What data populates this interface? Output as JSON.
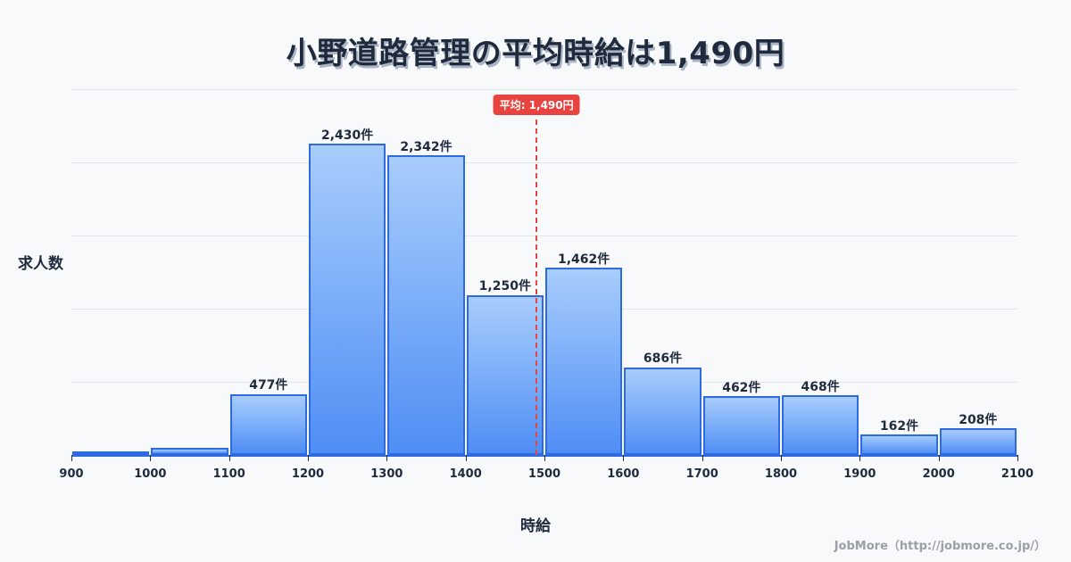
{
  "title": "小野道路管理の平均時給は1,490円",
  "y_axis_label": "求人数",
  "x_axis_label": "時給",
  "credit": "JobMore（http://jobmore.co.jp/）",
  "mean_badge": "平均: 1,490円",
  "colors": {
    "bar_fill_top": "#a8cdfc",
    "bar_fill_bottom": "#4f8ef5",
    "bar_border": "#2f6be0",
    "mean_line": "#e04848",
    "mean_badge": "#e8433f",
    "text": "#1f2a3c",
    "background": "#f8f9fb"
  },
  "chart_data": {
    "type": "bar",
    "title": "小野道路管理の平均時給は1,490円",
    "xlabel": "時給",
    "ylabel": "求人数",
    "bins": [
      [
        900,
        1000
      ],
      [
        1000,
        1100
      ],
      [
        1100,
        1200
      ],
      [
        1200,
        1300
      ],
      [
        1300,
        1400
      ],
      [
        1400,
        1500
      ],
      [
        1500,
        1600
      ],
      [
        1600,
        1700
      ],
      [
        1700,
        1800
      ],
      [
        1800,
        1900
      ],
      [
        1900,
        2000
      ],
      [
        2000,
        2100
      ]
    ],
    "categories": [
      "900-1000",
      "1000-1100",
      "1100-1200",
      "1200-1300",
      "1300-1400",
      "1400-1500",
      "1500-1600",
      "1600-1700",
      "1700-1800",
      "1800-1900",
      "1900-2000",
      "2000-2100"
    ],
    "values": [
      10,
      55,
      477,
      2430,
      2342,
      1250,
      1462,
      686,
      462,
      468,
      162,
      208
    ],
    "labels": [
      "",
      "",
      "477件",
      "2,430件",
      "2,342件",
      "1,250件",
      "1,462件",
      "686件",
      "462件",
      "468件",
      "162件",
      "208件"
    ],
    "x_ticks": [
      "900",
      "1000",
      "1100",
      "1200",
      "1300",
      "1400",
      "1500",
      "1600",
      "1700",
      "1800",
      "1900",
      "2000",
      "2100"
    ],
    "xlim": [
      900,
      2100
    ],
    "ylim": [
      0,
      2855
    ],
    "grid": true,
    "mean": 1490,
    "mean_label": "平均: 1,490円",
    "legend": null
  }
}
